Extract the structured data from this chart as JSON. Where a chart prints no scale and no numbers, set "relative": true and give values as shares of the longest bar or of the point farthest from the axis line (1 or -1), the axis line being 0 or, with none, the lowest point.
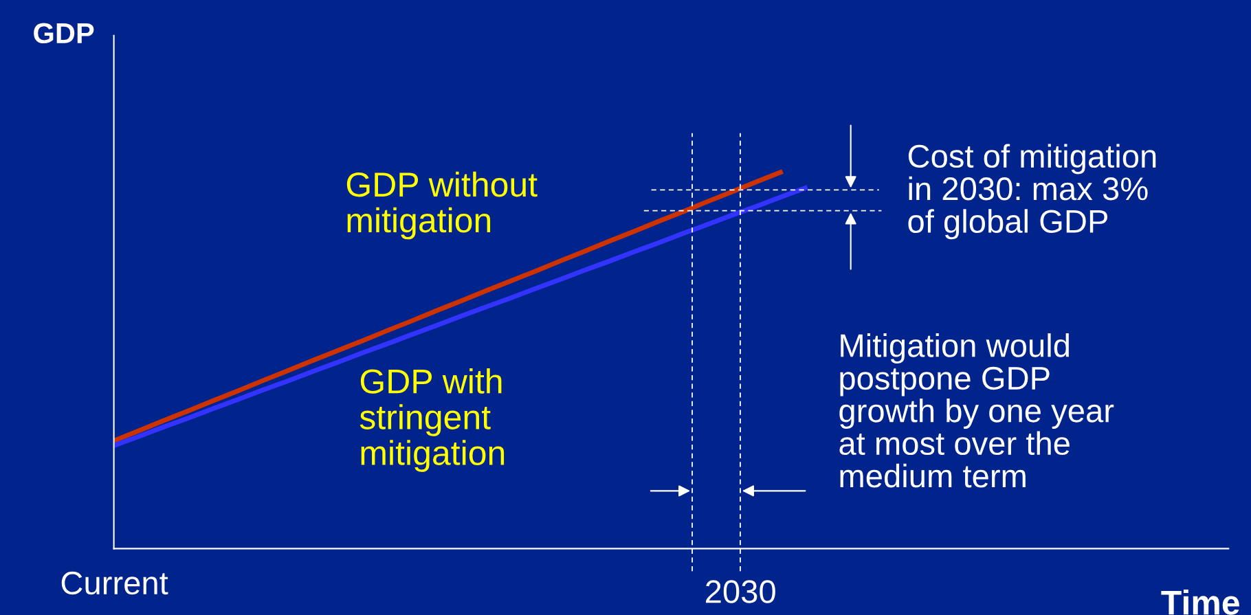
{
  "chart_data": {
    "type": "line",
    "relative": true,
    "xlabel": "Time",
    "ylabel": "GDP",
    "categories": [
      null,
      null,
      null,
      null,
      null,
      null,
      null,
      null,
      null,
      null,
      null,
      null,
      null,
      null,
      null,
      null,
      null,
      null,
      null,
      null,
      null,
      null,
      null,
      null,
      null,
      null,
      null,
      null,
      null,
      null,
      null,
      null,
      null,
      null,
      null,
      null,
      null,
      null,
      null,
      null,
      null,
      null,
      null,
      null,
      null,
      null
    ],
    "series": [
      {
        "name": "GDP without\nmitigation",
        "color": "#cc3300",
        "values": [
          0.286,
          0.312,
          0.339,
          0.365,
          0.392,
          0.418,
          0.445,
          0.471,
          0.498,
          0.524,
          0.55,
          0.577,
          0.603,
          0.63,
          0.656,
          0.683,
          0.709,
          0.735,
          0.762,
          0.788,
          0.815,
          0.841,
          0.868,
          0.894,
          0.921,
          0.947,
          0.974,
          1.0,
          null,
          null,
          null,
          null,
          null,
          null,
          null,
          null,
          null,
          null,
          null,
          null,
          null,
          null,
          null,
          null,
          null,
          null
        ]
      },
      {
        "name": "GDP with\nstringent\nmitigation",
        "color": "#3333ff",
        "values": [
          0.273,
          0.297,
          0.322,
          0.346,
          0.371,
          0.395,
          0.42,
          0.444,
          0.469,
          0.493,
          0.518,
          0.542,
          0.567,
          0.591,
          0.616,
          0.64,
          0.664,
          0.689,
          0.713,
          0.738,
          0.762,
          0.787,
          0.811,
          0.836,
          0.86,
          0.885,
          0.909,
          0.934,
          0.958,
          null,
          null,
          null,
          null,
          null,
          null,
          null,
          null,
          null,
          null,
          null,
          null,
          null,
          null,
          null,
          null,
          null
        ]
      }
    ],
    "ref_lines": [
      {
        "axis": "y",
        "value": 0.951,
        "line_style": "dashed",
        "color": "#ffffff"
      },
      {
        "axis": "y",
        "value": 0.896,
        "line_style": "dashed",
        "color": "#ffffff"
      }
    ],
    "annotations": [
      "Cost of mitigation\nin 2030: max 3%\nof global GDP",
      "Mitigation would\npostpone GDP\ngrowth by one year\nat most over the\nmedium term",
      "Current",
      "2030"
    ],
    "legend": false,
    "marker": "none"
  }
}
